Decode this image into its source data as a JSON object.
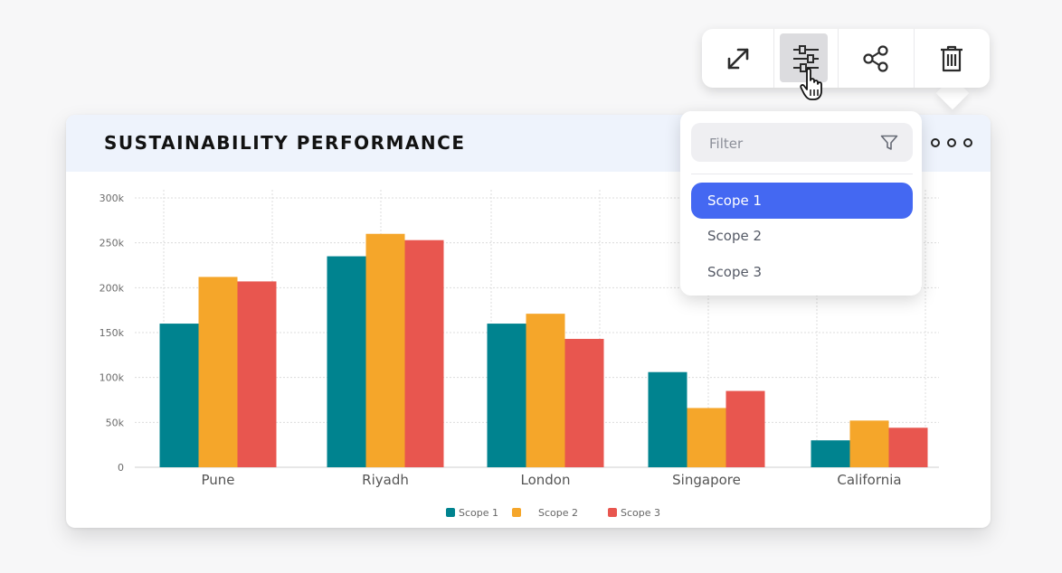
{
  "toolbar": {
    "buttons": [
      {
        "icon": "expand-icon"
      },
      {
        "icon": "sliders-icon",
        "active": true
      },
      {
        "icon": "share-icon"
      },
      {
        "icon": "trash-icon"
      }
    ]
  },
  "dropdown": {
    "filter_placeholder": "Filter",
    "items": [
      {
        "label": "Scope 1",
        "selected": true
      },
      {
        "label": "Scope 2",
        "selected": false
      },
      {
        "label": "Scope 3",
        "selected": false
      }
    ],
    "selected_color": "#4468f2"
  },
  "card": {
    "title": "SUSTAINABILITY PERFORMANCE"
  },
  "chart_data": {
    "type": "bar",
    "title": "SUSTAINABILITY PERFORMANCE",
    "xlabel": "",
    "ylabel": "",
    "categories": [
      "Pune",
      "Riyadh",
      "London",
      "Singapore",
      "California"
    ],
    "series": [
      {
        "name": "Scope 1",
        "color": "#00838f",
        "values": [
          160,
          235,
          160,
          106,
          30
        ]
      },
      {
        "name": "Scope 2",
        "color": "#f5a62a",
        "values": [
          212,
          260,
          171,
          66,
          52
        ]
      },
      {
        "name": "Scope 3",
        "color": "#e8564f",
        "values": [
          207,
          253,
          143,
          85,
          44
        ]
      }
    ],
    "y_ticks": [
      "300k",
      "250k",
      "200k",
      "150k",
      "100k",
      "50k",
      "0"
    ],
    "ylim": [
      0,
      300
    ],
    "grid": true,
    "legend": "bottom-center"
  }
}
